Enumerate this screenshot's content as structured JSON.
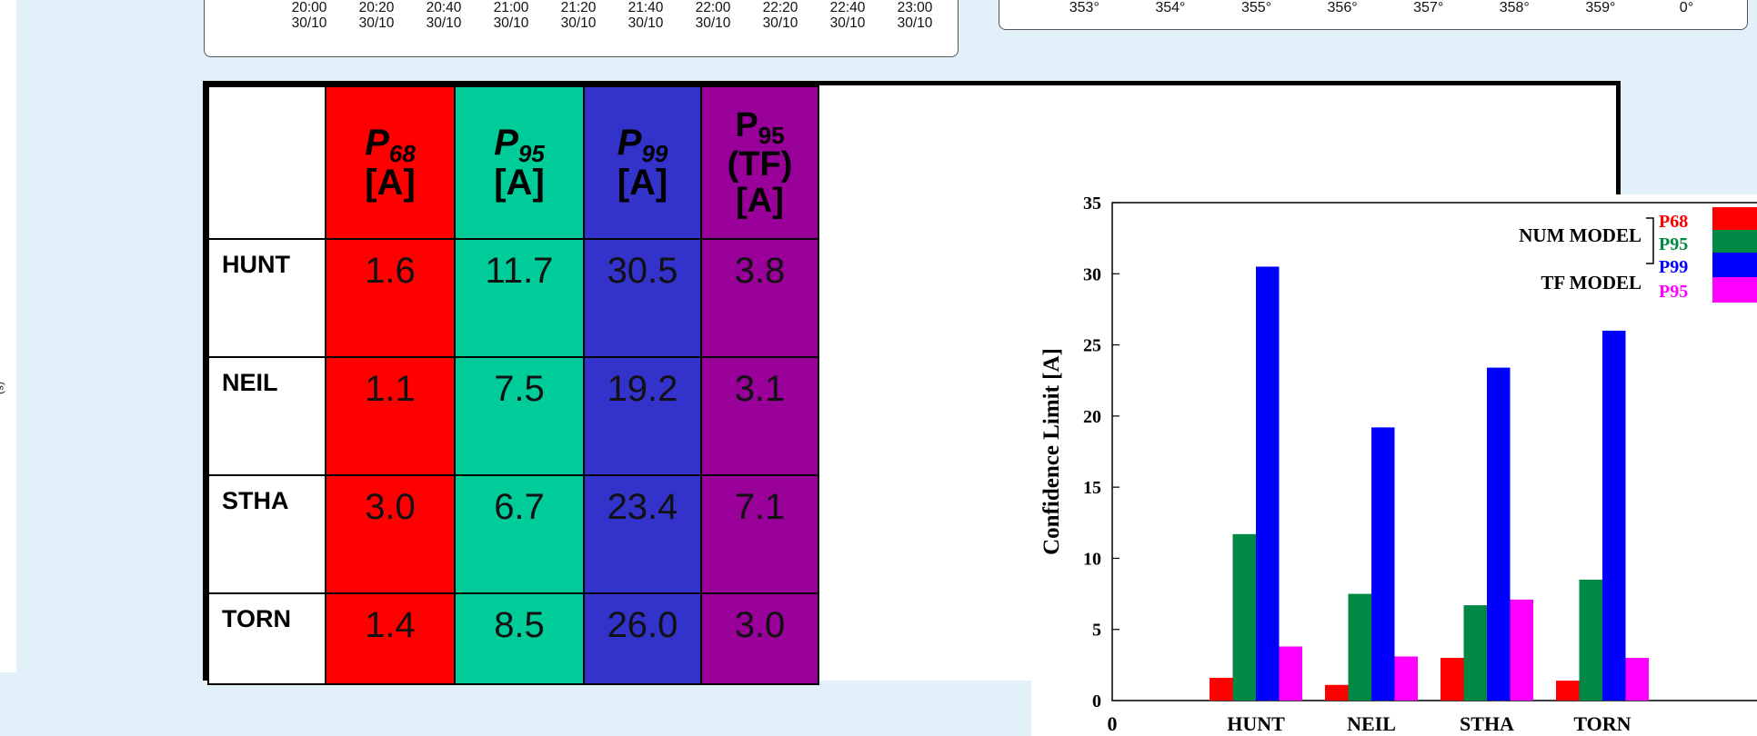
{
  "left_label": "(s)",
  "top_left_axis": {
    "ticks": [
      [
        "20:00",
        "30/10"
      ],
      [
        "20:20",
        "30/10"
      ],
      [
        "20:40",
        "30/10"
      ],
      [
        "21:00",
        "30/10"
      ],
      [
        "21:20",
        "30/10"
      ],
      [
        "21:40",
        "30/10"
      ],
      [
        "22:00",
        "30/10"
      ],
      [
        "22:20",
        "30/10"
      ],
      [
        "22:40",
        "30/10"
      ],
      [
        "23:00",
        "30/10"
      ]
    ]
  },
  "top_right_axis": {
    "ticks": [
      "353°",
      "354°",
      "355°",
      "356°",
      "357°",
      "358°",
      "359°",
      "0°"
    ]
  },
  "table": {
    "headers": [
      {
        "main": "P",
        "sub": "68",
        "unit": "[A]",
        "italic": true
      },
      {
        "main": "P",
        "sub": "95",
        "unit": "[A]",
        "italic": true
      },
      {
        "main": "P",
        "sub": "99",
        "unit": "[A]",
        "italic": true
      },
      {
        "main": "P",
        "sub": "95",
        "unit": "(TF) [A]",
        "italic": false
      }
    ],
    "rows": [
      {
        "station": "HUNT",
        "values": [
          "1.6",
          "11.7",
          "30.5",
          "3.8"
        ]
      },
      {
        "station": "NEIL",
        "values": [
          "1.1",
          "7.5",
          "19.2",
          "3.1"
        ]
      },
      {
        "station": "STHA",
        "values": [
          "3.0",
          "6.7",
          "23.4",
          "7.1"
        ]
      },
      {
        "station": "TORN",
        "values": [
          "1.4",
          "8.5",
          "26.0",
          "3.0"
        ]
      }
    ]
  },
  "chart_data": {
    "type": "bar",
    "categories": [
      "HUNT",
      "NEIL",
      "STHA",
      "TORN"
    ],
    "series": [
      {
        "name": "P68",
        "color": "#ff0000",
        "values": [
          1.6,
          1.1,
          3.0,
          1.4
        ]
      },
      {
        "name": "P95",
        "color": "#008844",
        "values": [
          11.7,
          7.5,
          6.7,
          8.5
        ]
      },
      {
        "name": "P99",
        "color": "#0000ff",
        "values": [
          30.5,
          19.2,
          23.4,
          26.0
        ]
      },
      {
        "name": "P95",
        "color": "#ff00ff",
        "values": [
          3.8,
          3.1,
          7.1,
          3.0
        ]
      }
    ],
    "ylabel": "Confidence Limit [A]",
    "xlabel": "",
    "x_origin_label": "0",
    "ylim": [
      0,
      35
    ],
    "yticks": [
      0,
      5,
      10,
      15,
      20,
      25,
      30,
      35
    ],
    "legend": {
      "placement": "top-right",
      "group_labels": [
        "NUM MODEL",
        "TF MODEL"
      ],
      "entries": [
        "P68",
        "P95",
        "P99",
        "P95"
      ]
    },
    "grid": false
  }
}
